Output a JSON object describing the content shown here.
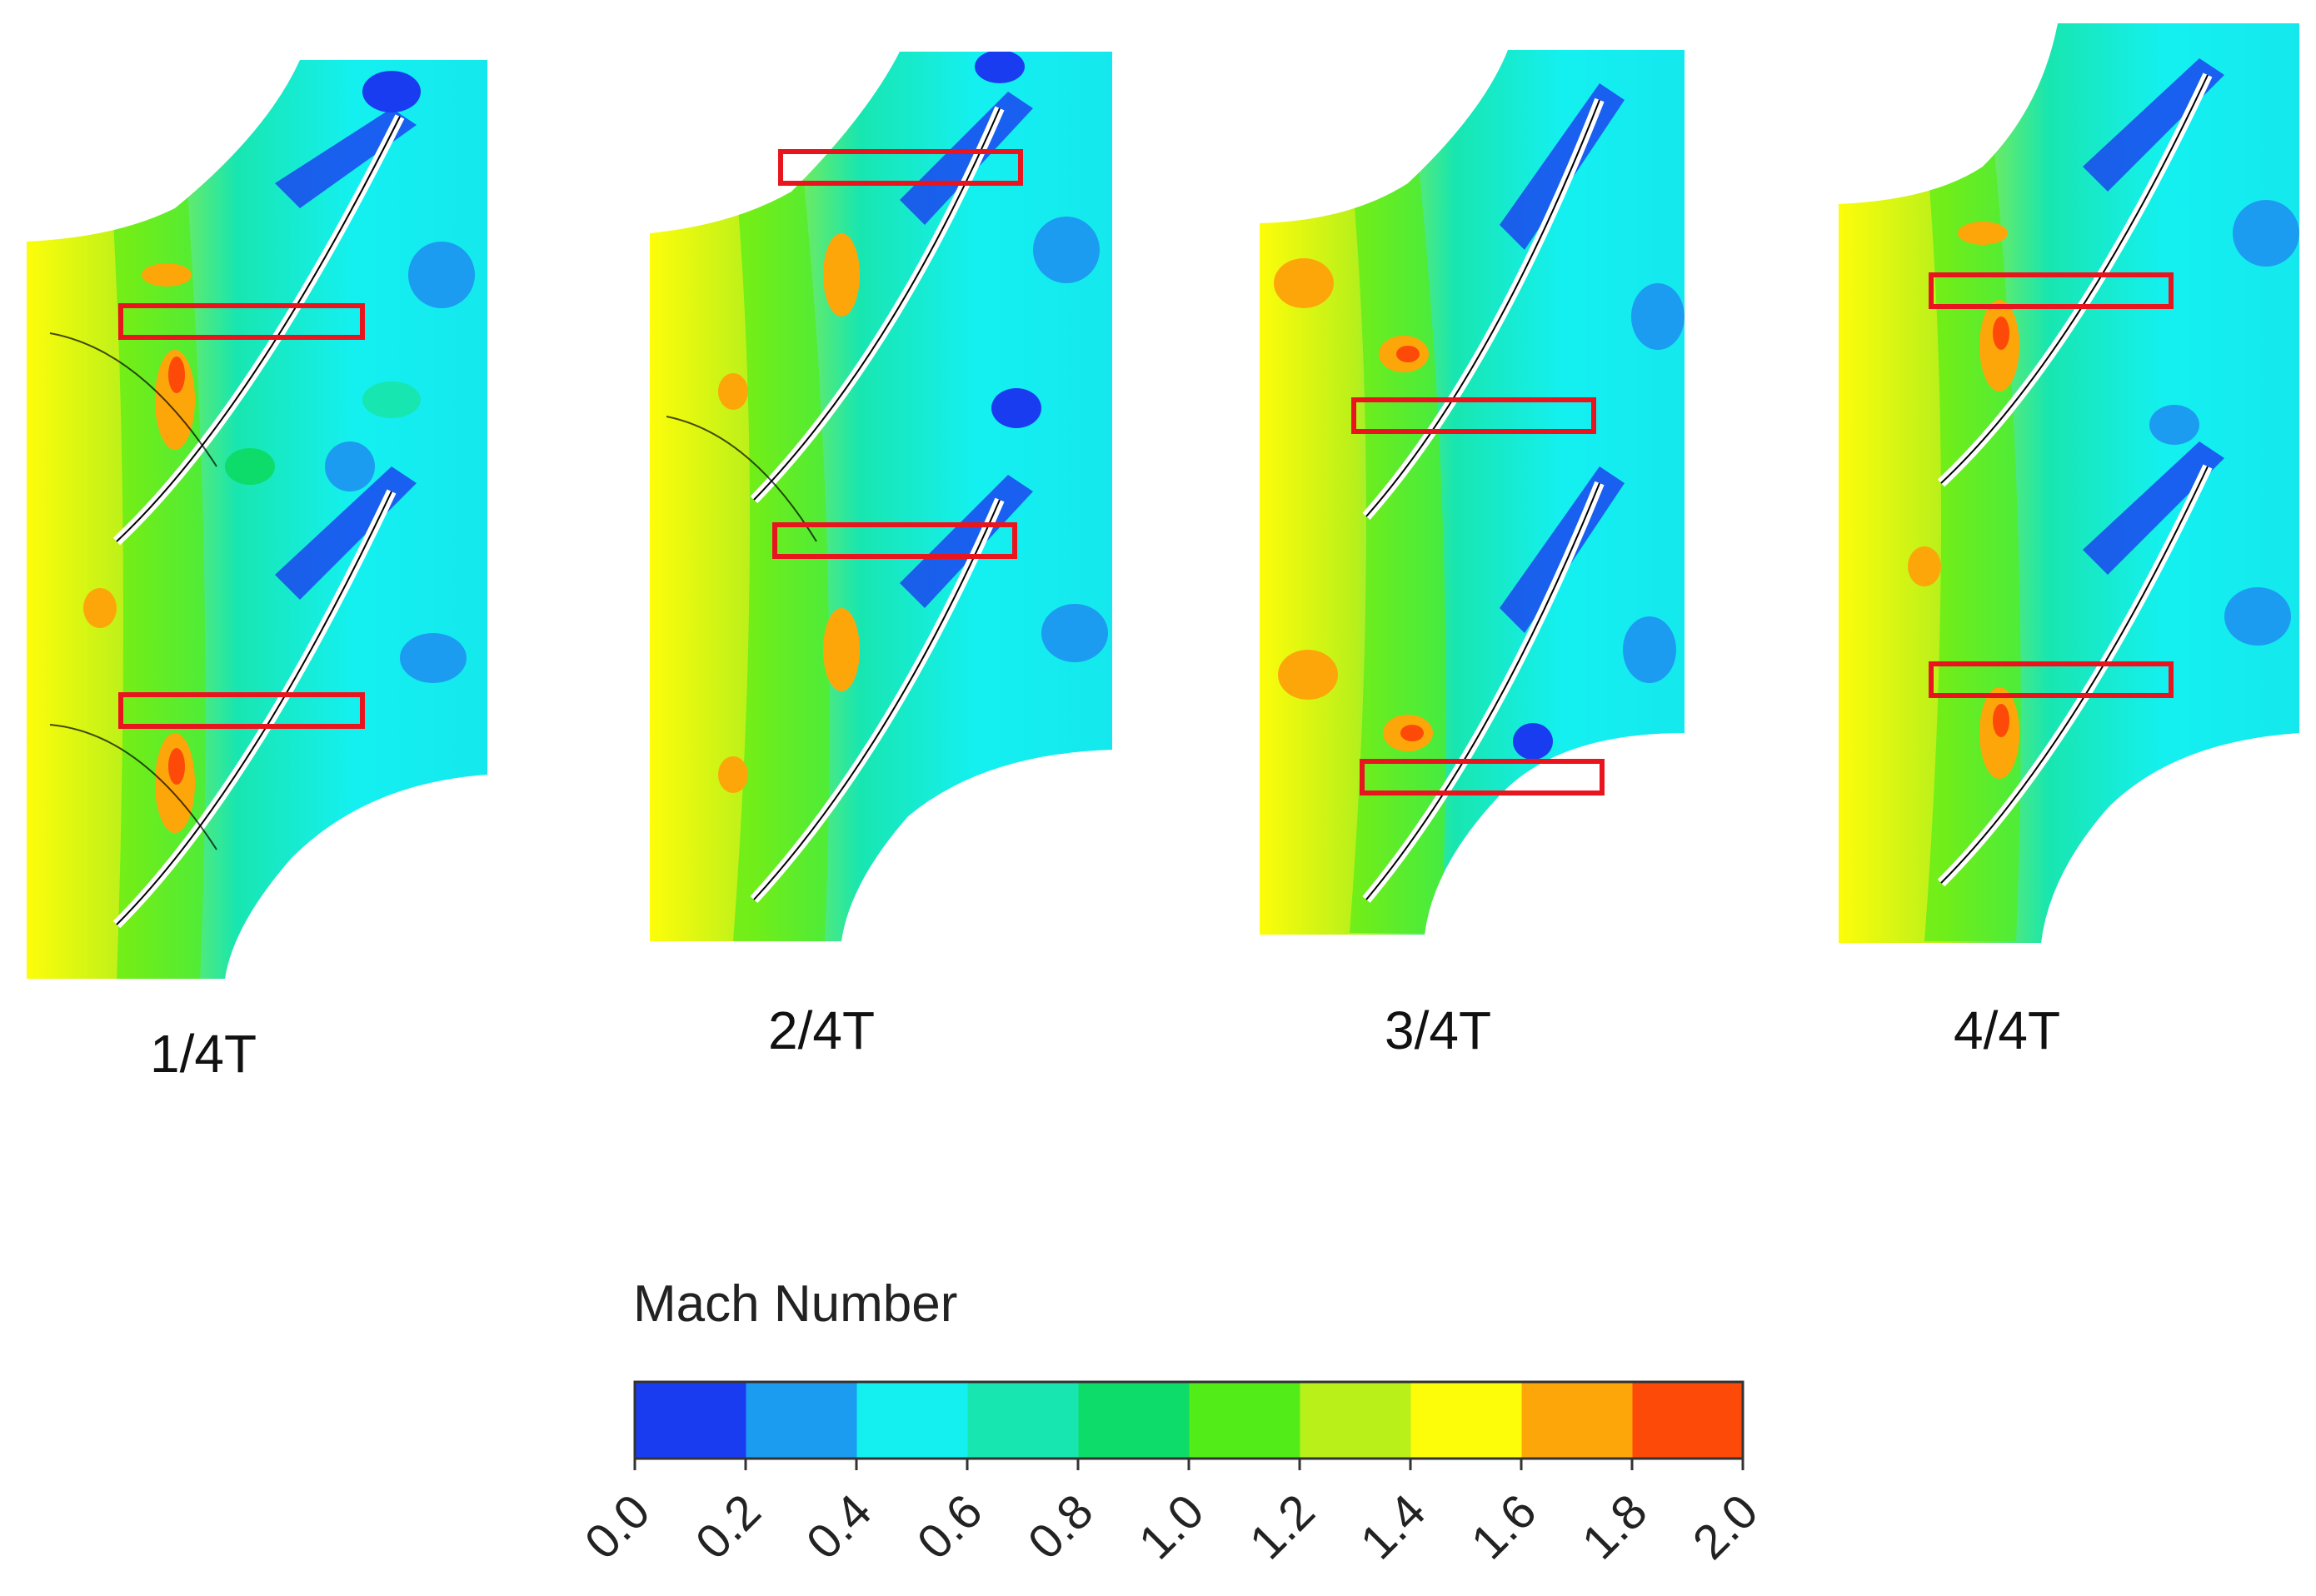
{
  "panels": [
    {
      "label": "1/4T"
    },
    {
      "label": "2/4T"
    },
    {
      "label": "3/4T"
    },
    {
      "label": "4/4T"
    }
  ],
  "colorbar": {
    "title": "Mach Number",
    "ticks": [
      "0.0",
      "0.2",
      "0.4",
      "0.6",
      "0.8",
      "1.0",
      "1.2",
      "1.4",
      "1.6",
      "1.8",
      "2.0"
    ],
    "colors": [
      "#1a3cf0",
      "#1c9cf0",
      "#14f0f0",
      "#18e6b0",
      "#0ddc6a",
      "#52ec18",
      "#b9f01a",
      "#fdfd0a",
      "#fda60a",
      "#fd4a08"
    ]
  },
  "highlight_color": "#e8141e"
}
